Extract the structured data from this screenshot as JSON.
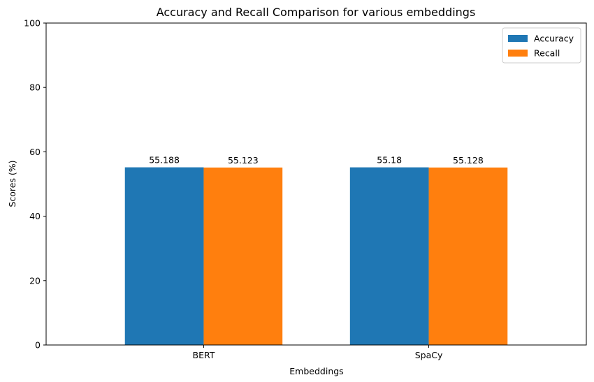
{
  "chart_data": {
    "type": "bar",
    "title": "Accuracy and Recall Comparison for various embeddings",
    "xlabel": "Embeddings",
    "ylabel": "Scores (%)",
    "categories": [
      "BERT",
      "SpaCy"
    ],
    "series": [
      {
        "name": "Accuracy",
        "values": [
          55.188,
          55.18
        ],
        "labels": [
          "55.188",
          "55.18"
        ],
        "color": "#1f77b4"
      },
      {
        "name": "Recall",
        "values": [
          55.123,
          55.128
        ],
        "labels": [
          "55.123",
          "55.128"
        ],
        "color": "#ff7f0e"
      }
    ],
    "ylim": [
      0,
      100
    ],
    "yticks": [
      0,
      20,
      40,
      60,
      80,
      100
    ],
    "grid": false,
    "legend_position": "top-right"
  }
}
